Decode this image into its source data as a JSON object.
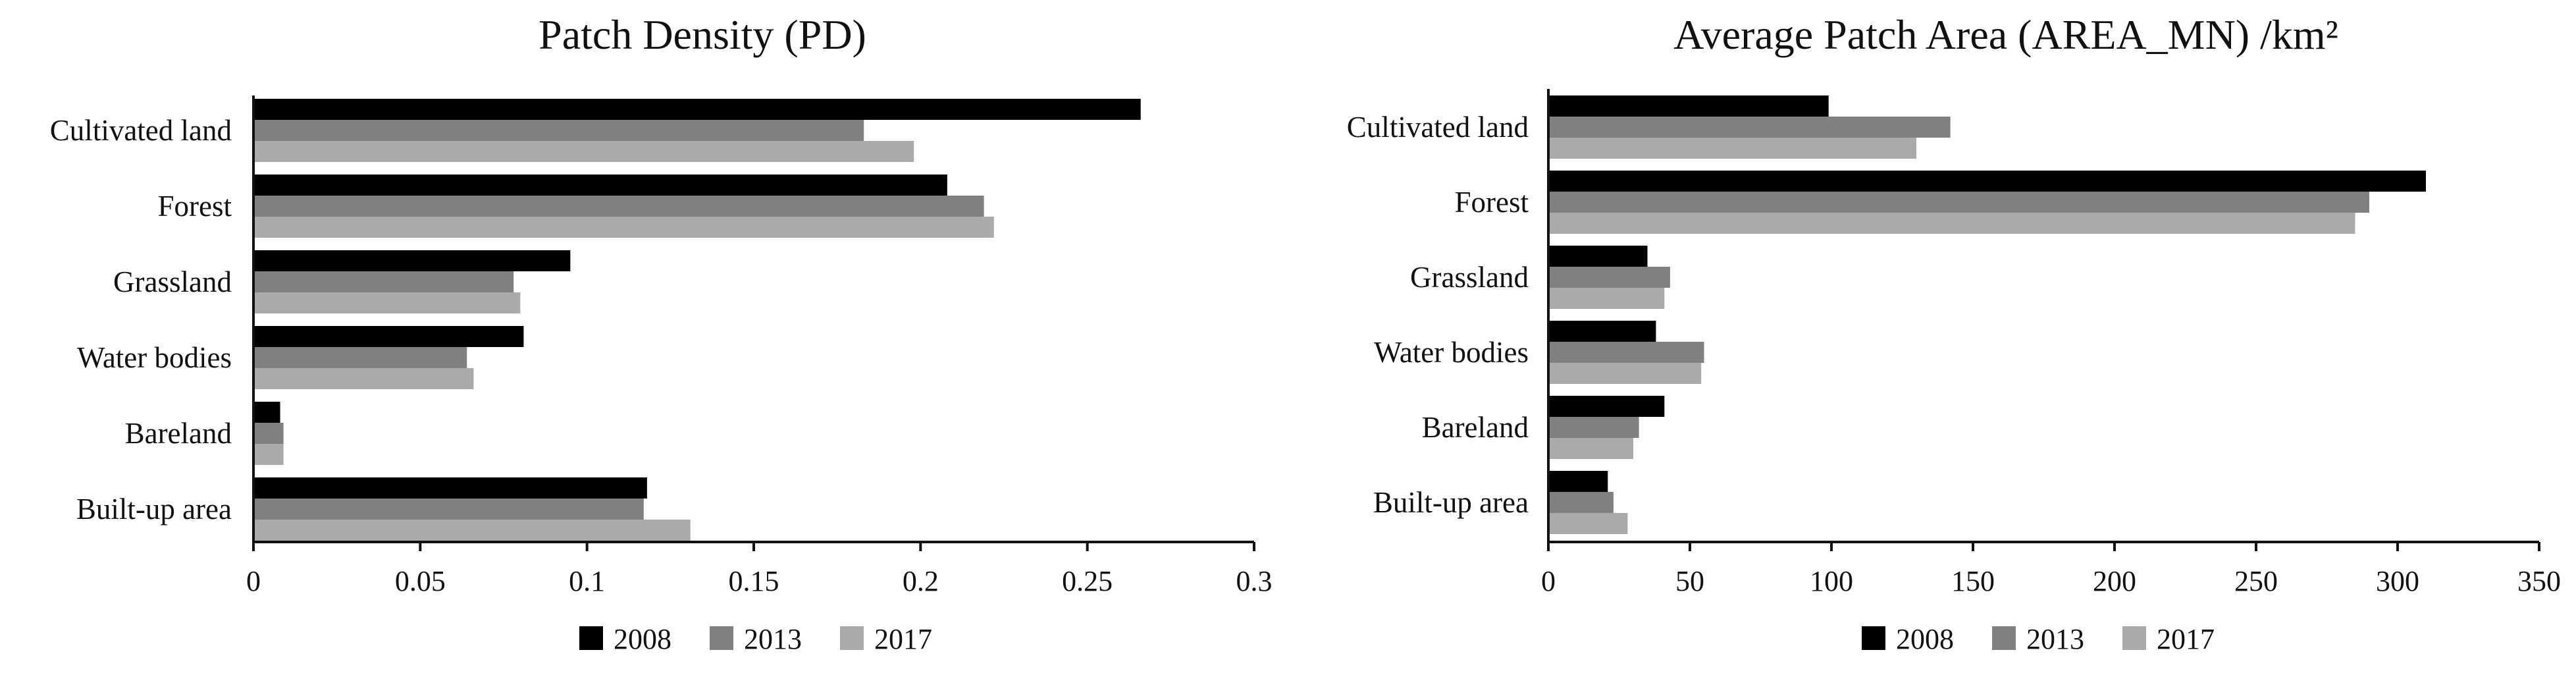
{
  "chart_data": [
    {
      "type": "bar",
      "orientation": "horizontal",
      "title": "Patch Density (PD)",
      "categories": [
        "Cultivated land",
        "Forest",
        "Grassland",
        "Water bodies",
        "Bareland",
        "Built-up area"
      ],
      "series": [
        {
          "name": "2008",
          "color": "#000000",
          "values": [
            0.266,
            0.208,
            0.095,
            0.081,
            0.008,
            0.118
          ]
        },
        {
          "name": "2013",
          "color": "#808080",
          "values": [
            0.183,
            0.219,
            0.078,
            0.064,
            0.009,
            0.117
          ]
        },
        {
          "name": "2017",
          "color": "#aaaaaa",
          "values": [
            0.198,
            0.222,
            0.08,
            0.066,
            0.009,
            0.131
          ]
        }
      ],
      "xlim": [
        0,
        0.3
      ],
      "ticks": [
        0,
        0.05,
        0.1,
        0.15,
        0.2,
        0.25,
        0.3
      ],
      "tick_labels": [
        "0",
        "0.05",
        "0.1",
        "0.15",
        "0.2",
        "0.25",
        "0.3"
      ],
      "legend_position": "bottom",
      "grid": false
    },
    {
      "type": "bar",
      "orientation": "horizontal",
      "title": "Average Patch Area (AREA_MN) /km²",
      "categories": [
        "Cultivated land",
        "Forest",
        "Grassland",
        "Water bodies",
        "Bareland",
        "Built-up area"
      ],
      "series": [
        {
          "name": "2008",
          "color": "#000000",
          "values": [
            99,
            310,
            35,
            38,
            41,
            21
          ]
        },
        {
          "name": "2013",
          "color": "#808080",
          "values": [
            142,
            290,
            43,
            55,
            32,
            23
          ]
        },
        {
          "name": "2017",
          "color": "#aaaaaa",
          "values": [
            130,
            285,
            41,
            54,
            30,
            28
          ]
        }
      ],
      "xlim": [
        0,
        350
      ],
      "ticks": [
        0,
        50,
        100,
        150,
        200,
        250,
        300,
        350
      ],
      "tick_labels": [
        "0",
        "50",
        "100",
        "150",
        "200",
        "250",
        "300",
        "350"
      ],
      "legend_position": "bottom",
      "grid": false
    }
  ]
}
